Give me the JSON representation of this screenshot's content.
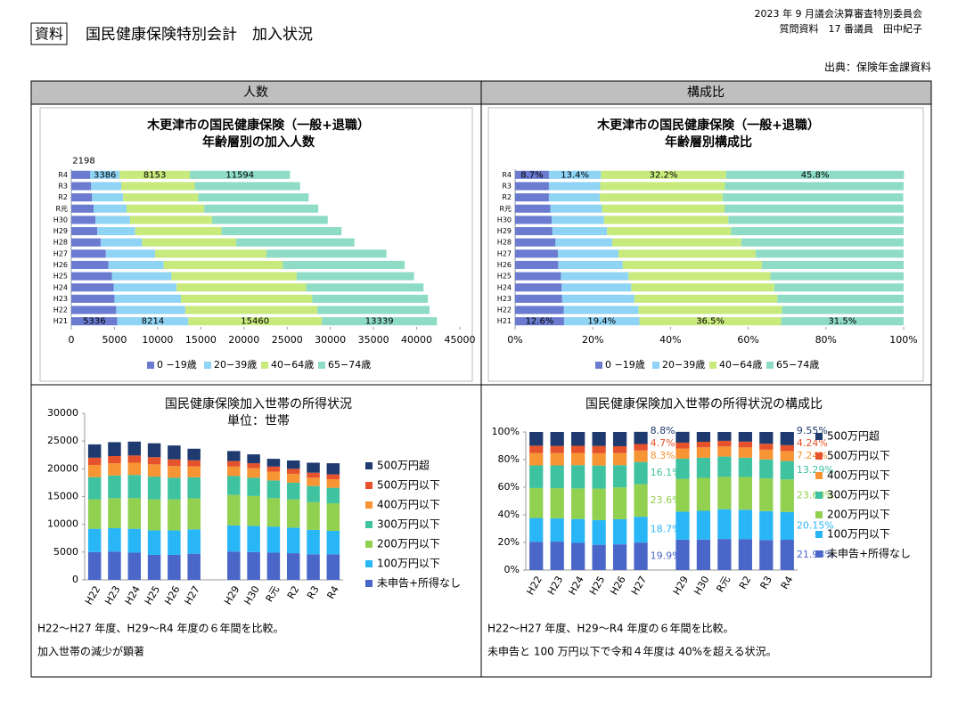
{
  "header": {
    "badge": "資料",
    "title": "国民健康保険特別会計　加入状況",
    "meeting": "2023 年 9 月議会決算審査特別委員会",
    "member": "質問資料　17 番議員　田中紀子",
    "source": "出典：保険年金課資料"
  },
  "table": {
    "headers": [
      "人数",
      "構成比"
    ],
    "captions": [
      [
        "H22～H27 年度、H29～R4 年度の６年間を比較。",
        "加入世帯の減少が顕著"
      ],
      [
        "H22～H27 年度、H29～R4 年度の６年間を比較。",
        "未申告と 100 万円以下で令和４年度は 40%を超える状況。"
      ]
    ]
  },
  "chart_data": [
    {
      "type": "bar",
      "orientation": "horizontal",
      "stacked": true,
      "title": [
        "木更津市の国民健康保険（一般+退職）",
        "年齢層別の加入人数"
      ],
      "categories": [
        "R4",
        "R3",
        "R2",
        "R元",
        "H30",
        "H29",
        "H28",
        "H27",
        "H26",
        "H25",
        "H24",
        "H23",
        "H22",
        "H21"
      ],
      "series": [
        {
          "name": "0 −19歳",
          "color": "#6a7bd0",
          "values": [
            2198,
            2300,
            2400,
            2600,
            2800,
            3000,
            3400,
            4000,
            4300,
            4700,
            4900,
            5000,
            5200,
            5336
          ],
          "value_labels": [
            "2198",
            null,
            null,
            null,
            null,
            null,
            null,
            null,
            null,
            null,
            null,
            null,
            null,
            "5336"
          ]
        },
        {
          "name": "20−39歳",
          "color": "#8fd3f5",
          "values": [
            3386,
            3500,
            3600,
            3800,
            4000,
            4400,
            4800,
            5700,
            6400,
            6900,
            7300,
            7700,
            8000,
            8214
          ],
          "value_labels": [
            "3386",
            null,
            null,
            null,
            null,
            null,
            null,
            null,
            null,
            null,
            null,
            null,
            null,
            "8214"
          ]
        },
        {
          "name": "40−64歳",
          "color": "#c8ea7c",
          "values": [
            8153,
            8500,
            8700,
            9000,
            9500,
            10000,
            10900,
            12900,
            13800,
            14500,
            15000,
            15200,
            15300,
            15460
          ],
          "value_labels": [
            "8153",
            null,
            null,
            null,
            null,
            null,
            null,
            null,
            null,
            null,
            null,
            null,
            null,
            "15460"
          ]
        },
        {
          "name": "65−74歳",
          "color": "#8edcc6",
          "values": [
            11594,
            12200,
            12800,
            13200,
            13400,
            13900,
            13700,
            13900,
            14100,
            13600,
            13600,
            13400,
            13000,
            13339
          ],
          "value_labels": [
            "11594",
            null,
            null,
            null,
            null,
            null,
            null,
            null,
            null,
            null,
            null,
            null,
            null,
            "13339"
          ]
        }
      ],
      "xlim": [
        0,
        45000
      ],
      "xticks": [
        0,
        5000,
        10000,
        15000,
        20000,
        25000,
        30000,
        35000,
        40000,
        45000
      ],
      "legend": "bottom"
    },
    {
      "type": "bar",
      "orientation": "horizontal",
      "stacked": true,
      "title": [
        "木更津市の国民健康保険（一般+退職）",
        "年齢層別構成比"
      ],
      "categories": [
        "R4",
        "R3",
        "R2",
        "R元",
        "H30",
        "H29",
        "H28",
        "H27",
        "H26",
        "H25",
        "H24",
        "H23",
        "H22",
        "H21"
      ],
      "series": [
        {
          "name": "0 −19歳",
          "color": "#6a7bd0",
          "values": [
            8.7,
            8.7,
            8.7,
            9.1,
            9.4,
            9.6,
            10.4,
            11.0,
            11.1,
            11.8,
            12.0,
            12.1,
            12.5,
            12.6
          ],
          "value_labels": [
            "8.7%",
            null,
            null,
            null,
            null,
            null,
            null,
            null,
            null,
            null,
            null,
            null,
            null,
            "12.6%"
          ]
        },
        {
          "name": "20−39歳",
          "color": "#8fd3f5",
          "values": [
            13.4,
            13.2,
            13.1,
            13.3,
            13.5,
            14.1,
            14.6,
            15.6,
            16.6,
            17.4,
            17.9,
            18.6,
            19.3,
            19.4
          ],
          "value_labels": [
            "13.4%",
            null,
            null,
            null,
            null,
            null,
            null,
            null,
            null,
            null,
            null,
            null,
            null,
            "19.4%"
          ]
        },
        {
          "name": "40−64歳",
          "color": "#c8ea7c",
          "values": [
            32.2,
            32.1,
            31.6,
            31.5,
            32.0,
            31.9,
            33.2,
            35.3,
            35.8,
            36.5,
            36.8,
            36.8,
            36.9,
            36.5
          ],
          "value_labels": [
            "32.2%",
            null,
            null,
            null,
            null,
            null,
            null,
            null,
            null,
            null,
            null,
            null,
            null,
            "36.5%"
          ]
        },
        {
          "name": "65−74歳",
          "color": "#8edcc6",
          "values": [
            45.8,
            46.0,
            46.5,
            46.1,
            45.1,
            44.4,
            41.8,
            38.1,
            36.5,
            34.3,
            33.3,
            32.5,
            31.3,
            31.5
          ],
          "value_labels": [
            "45.8%",
            null,
            null,
            null,
            null,
            null,
            null,
            null,
            null,
            null,
            null,
            null,
            null,
            "31.5%"
          ]
        }
      ],
      "xlim": [
        0,
        100
      ],
      "xticks": [
        {
          "value": 0,
          "label": "0%"
        },
        {
          "value": 20,
          "label": "20%"
        },
        {
          "value": 40,
          "label": "40%"
        },
        {
          "value": 60,
          "label": "60%"
        },
        {
          "value": 80,
          "label": "80%"
        },
        {
          "value": 100,
          "label": "100%"
        }
      ],
      "legend": "bottom"
    },
    {
      "type": "bar",
      "orientation": "vertical",
      "stacked": true,
      "title": [
        "国民健康保険加入世帯の所得状況",
        "単位：世帯"
      ],
      "categories": [
        "H22",
        "H23",
        "H24",
        "H25",
        "H26",
        "H27",
        "H29",
        "H30",
        "R元",
        "R2",
        "R3",
        "R4"
      ],
      "series": [
        {
          "name": "未申告+所得なし",
          "color": "#4a66c8",
          "values": [
            5000,
            5100,
            4900,
            4500,
            4500,
            4700,
            5100,
            5000,
            4900,
            4800,
            4600,
            4600
          ]
        },
        {
          "name": "100万円以下",
          "color": "#29b6f6",
          "values": [
            4200,
            4200,
            4300,
            4400,
            4400,
            4400,
            4700,
            4700,
            4700,
            4600,
            4400,
            4230
          ]
        },
        {
          "name": "200万円以下",
          "color": "#92d050",
          "values": [
            5300,
            5400,
            5500,
            5600,
            5600,
            5570,
            5500,
            5400,
            5100,
            5100,
            5000,
            4960
          ]
        },
        {
          "name": "300万円以下",
          "color": "#3fc2a0",
          "values": [
            4000,
            4100,
            4200,
            4100,
            3900,
            3800,
            3400,
            3300,
            3200,
            3000,
            2900,
            2790
          ]
        },
        {
          "name": "400万円以下",
          "color": "#f79433",
          "values": [
            2200,
            2200,
            2200,
            2200,
            2100,
            1960,
            1700,
            1700,
            1600,
            1600,
            1500,
            1520
          ]
        },
        {
          "name": "500万円以下",
          "color": "#e5522b",
          "values": [
            1300,
            1300,
            1300,
            1300,
            1200,
            1110,
            1000,
            900,
            900,
            900,
            900,
            890
          ]
        },
        {
          "name": "500万円超",
          "color": "#1f3a6e",
          "values": [
            2400,
            2500,
            2500,
            2500,
            2500,
            2080,
            1800,
            1600,
            1400,
            1500,
            1800,
            2010
          ]
        }
      ],
      "ylim": [
        0,
        30000
      ],
      "yticks": [
        0,
        5000,
        10000,
        15000,
        20000,
        25000,
        30000
      ],
      "legend": "right"
    },
    {
      "type": "bar",
      "orientation": "vertical",
      "stacked": true,
      "title": [
        "国民健康保険加入世帯の所得状況の構成比"
      ],
      "categories": [
        "H22",
        "H23",
        "H24",
        "H25",
        "H26",
        "H27",
        "H29",
        "H30",
        "R元",
        "R2",
        "R3",
        "R4"
      ],
      "series": [
        {
          "name": "未申告+所得なし",
          "color": "#4a66c8",
          "values": [
            20.5,
            20.6,
            19.7,
            18.3,
            18.6,
            19.9,
            22.0,
            22.1,
            22.5,
            22.3,
            21.8,
            21.93
          ],
          "value_labels": [
            null,
            null,
            null,
            null,
            null,
            "19.9%",
            null,
            null,
            null,
            null,
            null,
            "21.93%"
          ]
        },
        {
          "name": "100万円以下",
          "color": "#29b6f6",
          "values": [
            17.2,
            16.9,
            17.3,
            17.9,
            18.2,
            18.7,
            20.3,
            20.8,
            21.6,
            21.4,
            20.9,
            20.15
          ],
          "value_labels": [
            null,
            null,
            null,
            null,
            null,
            "18.7%",
            null,
            null,
            null,
            null,
            null,
            "20.15%"
          ]
        },
        {
          "name": "200万円以下",
          "color": "#92d050",
          "values": [
            21.7,
            21.8,
            22.1,
            22.8,
            23.1,
            23.6,
            23.7,
            23.9,
            23.4,
            23.7,
            23.7,
            23.6
          ],
          "value_labels": [
            null,
            null,
            null,
            null,
            null,
            "23.6%",
            null,
            null,
            null,
            null,
            null,
            "23.60%"
          ]
        },
        {
          "name": "300万円以下",
          "color": "#3fc2a0",
          "values": [
            16.4,
            16.5,
            16.9,
            16.7,
            16.1,
            16.1,
            14.7,
            14.6,
            14.7,
            14.0,
            13.7,
            13.29
          ],
          "value_labels": [
            null,
            null,
            null,
            null,
            null,
            "16.1%",
            null,
            null,
            null,
            null,
            null,
            "13.29%"
          ]
        },
        {
          "name": "400万円以下",
          "color": "#f79433",
          "values": [
            9.0,
            8.9,
            8.8,
            8.9,
            8.7,
            8.3,
            7.3,
            7.5,
            7.3,
            7.4,
            7.1,
            7.24
          ],
          "value_labels": [
            null,
            null,
            null,
            null,
            null,
            "8.3%",
            null,
            null,
            null,
            null,
            null,
            "7.24%"
          ]
        },
        {
          "name": "500万円以下",
          "color": "#e5522b",
          "values": [
            5.3,
            5.2,
            5.2,
            5.3,
            5.0,
            4.7,
            4.3,
            4.0,
            4.1,
            4.2,
            4.3,
            4.24
          ],
          "value_labels": [
            null,
            null,
            null,
            null,
            null,
            "4.7%",
            null,
            null,
            null,
            null,
            null,
            "4.24%"
          ]
        },
        {
          "name": "500万円超",
          "color": "#1f3a6e",
          "values": [
            9.9,
            10.1,
            10.0,
            10.1,
            10.3,
            8.8,
            7.8,
            7.1,
            6.4,
            7.0,
            8.5,
            9.55
          ],
          "value_labels": [
            null,
            null,
            null,
            null,
            null,
            "8.8%",
            null,
            null,
            null,
            null,
            null,
            "9.55%"
          ]
        }
      ],
      "ylim": [
        0,
        100
      ],
      "yticks": [
        {
          "value": 0,
          "label": "0%"
        },
        {
          "value": 20,
          "label": "20%"
        },
        {
          "value": 40,
          "label": "40%"
        },
        {
          "value": 60,
          "label": "60%"
        },
        {
          "value": 80,
          "label": "80%"
        },
        {
          "value": 100,
          "label": "100%"
        }
      ],
      "legend": "right"
    }
  ]
}
